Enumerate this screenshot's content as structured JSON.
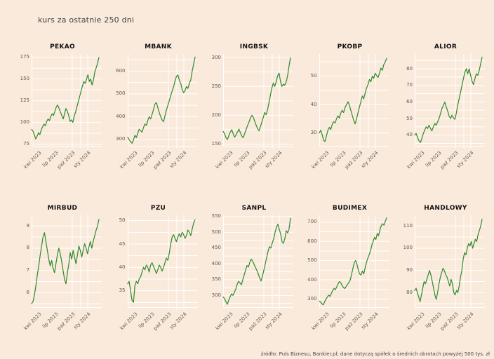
{
  "page": {
    "title": "kurs za ostatnie 250 dni",
    "footer": "źródło: Puls Biznesu, Bankier.pl; dane dotyczą spółek o średnich obrotach powyżej 500 tys. zł",
    "background_color": "#faeadb",
    "grid_color": "#ffffff",
    "line_color": "#2d8a2d",
    "x_ticks": [
      "kwi 2023",
      "lip 2023",
      "paź 2023",
      "sty 2024"
    ]
  },
  "chart_data": [
    {
      "type": "line",
      "title": "PEKAO",
      "ylim": [
        73,
        178
      ],
      "yticks": [
        75,
        100,
        125,
        150,
        175
      ],
      "values": [
        92,
        90,
        86,
        81,
        84,
        88,
        86,
        91,
        95,
        98,
        96,
        101,
        104,
        102,
        107,
        110,
        108,
        113,
        118,
        120,
        116,
        112,
        108,
        104,
        110,
        116,
        113,
        108,
        101,
        103,
        100,
        107,
        112,
        118,
        124,
        130,
        136,
        142,
        147,
        145,
        150,
        155,
        147,
        150,
        143,
        149,
        158,
        163,
        168,
        175
      ]
    },
    {
      "type": "line",
      "title": "MBANK",
      "ylim": [
        272,
        672
      ],
      "yticks": [
        300,
        400,
        500,
        600
      ],
      "values": [
        310,
        300,
        290,
        283,
        298,
        318,
        308,
        328,
        345,
        338,
        332,
        352,
        368,
        362,
        383,
        400,
        390,
        410,
        432,
        455,
        462,
        440,
        418,
        400,
        386,
        378,
        404,
        428,
        450,
        470,
        492,
        512,
        532,
        556,
        576,
        583,
        562,
        545,
        520,
        505,
        515,
        532,
        524,
        545,
        562,
        600,
        632,
        662
      ]
    },
    {
      "type": "line",
      "title": "INGBSK",
      "ylim": [
        147,
        305
      ],
      "yticks": [
        150,
        200,
        250,
        300
      ],
      "values": [
        172,
        168,
        161,
        158,
        165,
        171,
        175,
        168,
        162,
        166,
        171,
        176,
        170,
        164,
        161,
        168,
        175,
        182,
        188,
        195,
        200,
        197,
        190,
        183,
        177,
        173,
        180,
        188,
        196,
        205,
        201,
        210,
        222,
        235,
        247,
        256,
        250,
        258,
        268,
        273,
        259,
        250,
        254,
        252,
        258,
        269,
        286,
        300
      ]
    },
    {
      "type": "line",
      "title": "PKOBP",
      "ylim": [
        25.5,
        57.5
      ],
      "yticks": [
        30,
        40,
        50
      ],
      "values": [
        30,
        31,
        29.5,
        27.5,
        27,
        29,
        31,
        32,
        31.2,
        33,
        34,
        33.5,
        35,
        36,
        35.2,
        37,
        38,
        37.2,
        39,
        40,
        41,
        39.8,
        38,
        36.2,
        34.5,
        33.2,
        35,
        37,
        39,
        41,
        43,
        42,
        44,
        45.8,
        47,
        48.8,
        48,
        50,
        49.2,
        51,
        50.2,
        49.5,
        51,
        52.8,
        52,
        54,
        55,
        56.2
      ]
    },
    {
      "type": "line",
      "title": "ALIOR",
      "ylim": [
        33.5,
        88.5
      ],
      "yticks": [
        40,
        50,
        60,
        70,
        80
      ],
      "values": [
        40,
        41,
        38.5,
        36.5,
        35.5,
        38,
        41,
        43,
        45,
        44,
        46,
        44,
        42.5,
        45,
        47,
        46,
        48,
        50,
        53,
        56,
        58,
        60,
        57,
        54.5,
        51.5,
        50,
        52,
        50.5,
        49.5,
        53,
        58,
        62,
        66,
        70,
        74,
        78,
        80,
        77,
        80,
        76,
        72.5,
        70.5,
        74,
        77,
        76,
        79,
        83,
        87
      ]
    },
    {
      "type": "line",
      "title": "MIRBUD",
      "ylim": [
        5.35,
        9.45
      ],
      "yticks": [
        6,
        7,
        8,
        9
      ],
      "values": [
        5.5,
        5.6,
        5.9,
        6.3,
        6.8,
        7.2,
        7.7,
        8.1,
        8.5,
        8.7,
        8.3,
        7.9,
        7.5,
        7.2,
        7.45,
        7.1,
        6.9,
        7.3,
        7.7,
        8.0,
        7.75,
        7.4,
        7.0,
        6.6,
        6.4,
        6.9,
        7.3,
        7.8,
        7.5,
        7.9,
        7.6,
        7.3,
        7.7,
        8.1,
        7.9,
        7.6,
        7.9,
        8.2,
        8.0,
        7.75,
        8.05,
        8.3,
        8.0,
        8.3,
        8.55,
        8.8,
        9.0,
        9.3
      ]
    },
    {
      "type": "line",
      "title": "PZU",
      "ylim": [
        31.5,
        51
      ],
      "yticks": [
        35,
        40,
        45,
        50
      ],
      "values": [
        36.5,
        37,
        35,
        33,
        32.5,
        36,
        37,
        36.5,
        37.5,
        38,
        39,
        40,
        39.5,
        40.5,
        40,
        39,
        40.5,
        41,
        40.2,
        39.5,
        38.7,
        39.5,
        40.5,
        40,
        39.2,
        40,
        41,
        42,
        41.5,
        43,
        45,
        46.5,
        47,
        46.2,
        45.5,
        46.5,
        47.2,
        46.5,
        47.5,
        47,
        46.2,
        46.8,
        48,
        47.5,
        46.8,
        48.2,
        49.5,
        50.2
      ]
    },
    {
      "type": "line",
      "title": "SANPL",
      "ylim": [
        263,
        552
      ],
      "yticks": [
        300,
        350,
        400,
        450,
        500,
        550
      ],
      "values": [
        295,
        290,
        280,
        272,
        285,
        296,
        305,
        300,
        310,
        320,
        335,
        345,
        340,
        334,
        350,
        365,
        380,
        395,
        390,
        405,
        415,
        409,
        399,
        389,
        379,
        369,
        355,
        346,
        360,
        380,
        400,
        420,
        440,
        455,
        450,
        466,
        480,
        500,
        515,
        526,
        510,
        494,
        470,
        465,
        481,
        505,
        498,
        512,
        545
      ]
    },
    {
      "type": "line",
      "title": "BUDIMEX",
      "ylim": [
        258,
        732
      ],
      "yticks": [
        300,
        400,
        500,
        600,
        700
      ],
      "values": [
        290,
        284,
        275,
        270,
        286,
        300,
        310,
        320,
        314,
        330,
        345,
        355,
        349,
        365,
        380,
        391,
        384,
        370,
        359,
        355,
        366,
        376,
        386,
        400,
        430,
        460,
        490,
        501,
        479,
        450,
        430,
        425,
        446,
        430,
        461,
        490,
        511,
        530,
        551,
        580,
        600,
        621,
        610,
        641,
        629,
        660,
        681,
        692,
        684,
        704,
        722
      ]
    },
    {
      "type": "line",
      "title": "HANDLOWY",
      "ylim": [
        73.5,
        114.5
      ],
      "yticks": [
        80,
        90,
        100,
        110
      ],
      "values": [
        81,
        82,
        80,
        78,
        76,
        79,
        82,
        85,
        84,
        86,
        88,
        90,
        88,
        85,
        82,
        79,
        77,
        80,
        84,
        87,
        89,
        91,
        90,
        88,
        87,
        85,
        83,
        86,
        84,
        80,
        79,
        81,
        80,
        83,
        87,
        90,
        95,
        98,
        97,
        100,
        102,
        101,
        103,
        100,
        102,
        104,
        103,
        106,
        108,
        110,
        113
      ]
    }
  ]
}
